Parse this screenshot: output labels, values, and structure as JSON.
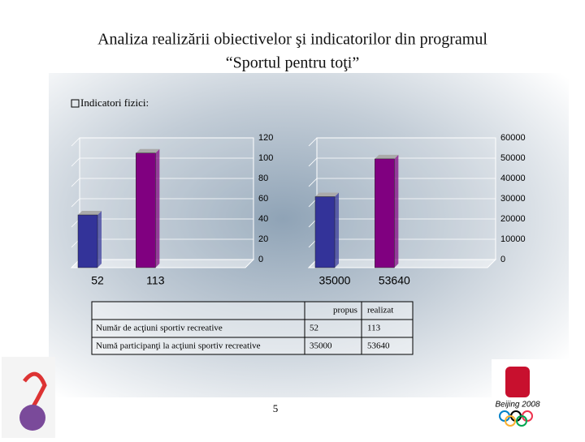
{
  "title": "Analiza realizării obiectivelor şi indicatorilor din programul",
  "subtitle": "“Sportul pentru toţi”",
  "section": "Indicatori fizici:",
  "chart_data": [
    {
      "type": "bar",
      "values": [
        52,
        113
      ],
      "colors": [
        "#333399",
        "#800080"
      ],
      "ylim": [
        0,
        120
      ],
      "yticks": [
        0,
        20,
        40,
        60,
        80,
        100,
        120
      ],
      "grid": true
    },
    {
      "type": "bar",
      "values": [
        35000,
        53640
      ],
      "colors": [
        "#333399",
        "#800080"
      ],
      "ylim": [
        0,
        60000
      ],
      "yticks": [
        0,
        10000,
        20000,
        30000,
        40000,
        50000,
        60000
      ],
      "grid": true
    }
  ],
  "table": {
    "columns": [
      "propus",
      "realizat"
    ],
    "rows": [
      {
        "label": "Număr de acţiuni sportiv recreative",
        "values": [
          52,
          113
        ]
      },
      {
        "label": "Numă participanţi la acţiuni sportiv recreative",
        "values": [
          35000,
          53640
        ]
      }
    ]
  },
  "page_number": "5",
  "logo_text": "Beijing 2008"
}
